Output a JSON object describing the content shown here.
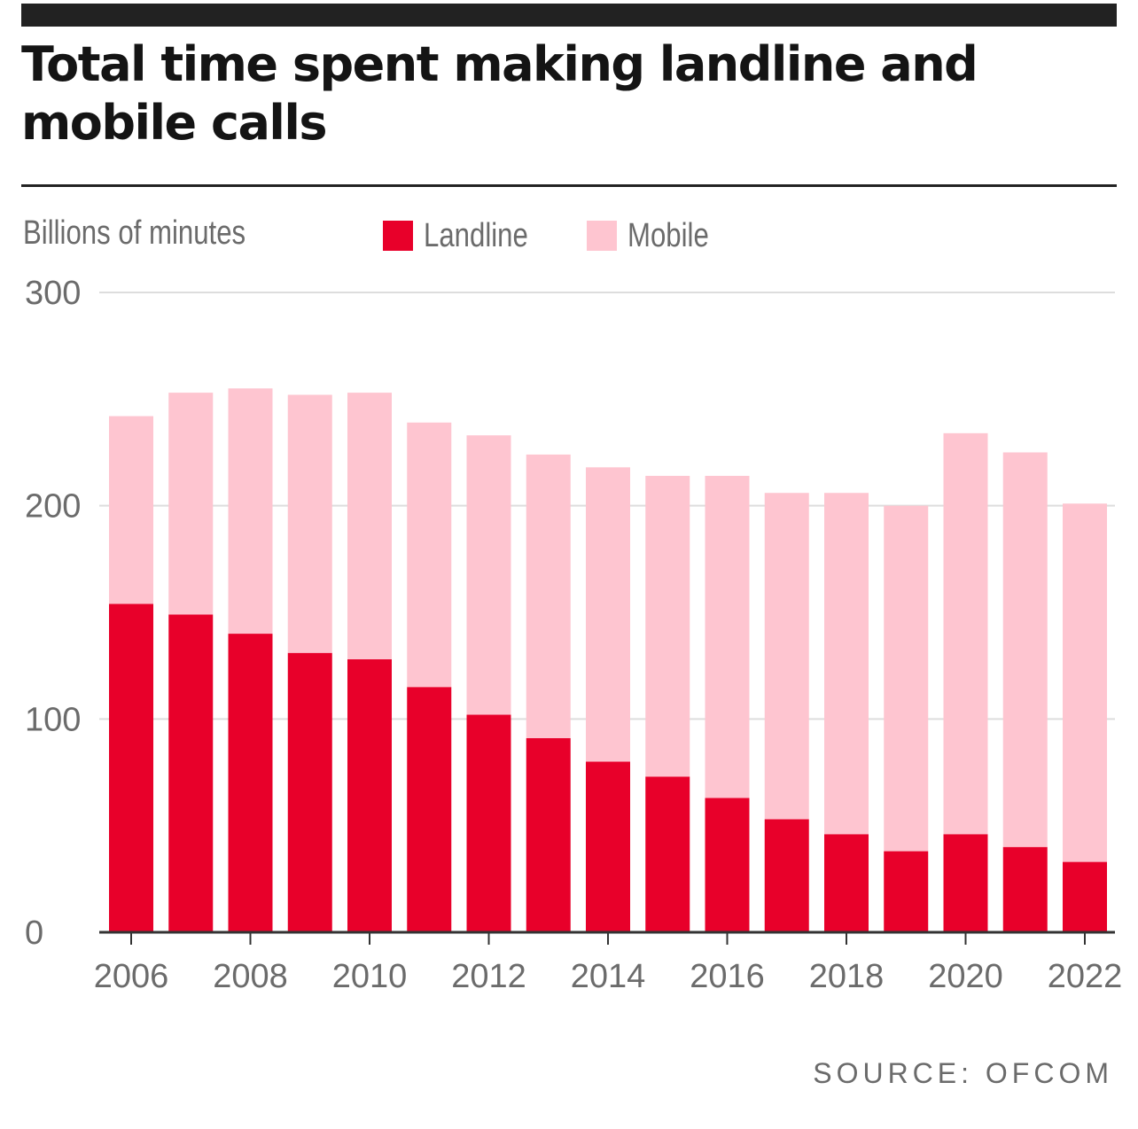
{
  "header": {
    "title": "Total time spent making landline and mobile calls"
  },
  "footer": {
    "source": "SOURCE: OFCOM"
  },
  "colors": {
    "landline": "#e8002a",
    "mobile": "#fec5d0",
    "gridline": "#dddddd",
    "axis": "#333333",
    "text": "#6b6b6b"
  },
  "chart_data": {
    "type": "bar",
    "stacked": true,
    "title": "Total time spent making landline and mobile calls",
    "ylabel": "Billions of minutes",
    "xlabel": "",
    "ylim": [
      0,
      300
    ],
    "yticks": [
      0,
      100,
      200,
      300
    ],
    "xtick_labels": [
      "2006",
      "2008",
      "2010",
      "2012",
      "2014",
      "2016",
      "2018",
      "2020",
      "2022"
    ],
    "grid": true,
    "legend_position": "top",
    "categories": [
      "2006",
      "2007",
      "2008",
      "2009",
      "2010",
      "2011",
      "2012",
      "2013",
      "2014",
      "2015",
      "2016",
      "2017",
      "2018",
      "2019",
      "2020",
      "2021",
      "2022"
    ],
    "series": [
      {
        "name": "Landline",
        "color": "#e8002a",
        "values": [
          154,
          149,
          140,
          131,
          128,
          115,
          102,
          91,
          80,
          73,
          63,
          53,
          46,
          38,
          46,
          40,
          33
        ]
      },
      {
        "name": "Mobile",
        "color": "#fec5d0",
        "values": [
          88,
          104,
          115,
          121,
          125,
          124,
          131,
          133,
          138,
          141,
          151,
          153,
          160,
          162,
          188,
          185,
          168
        ]
      }
    ]
  }
}
